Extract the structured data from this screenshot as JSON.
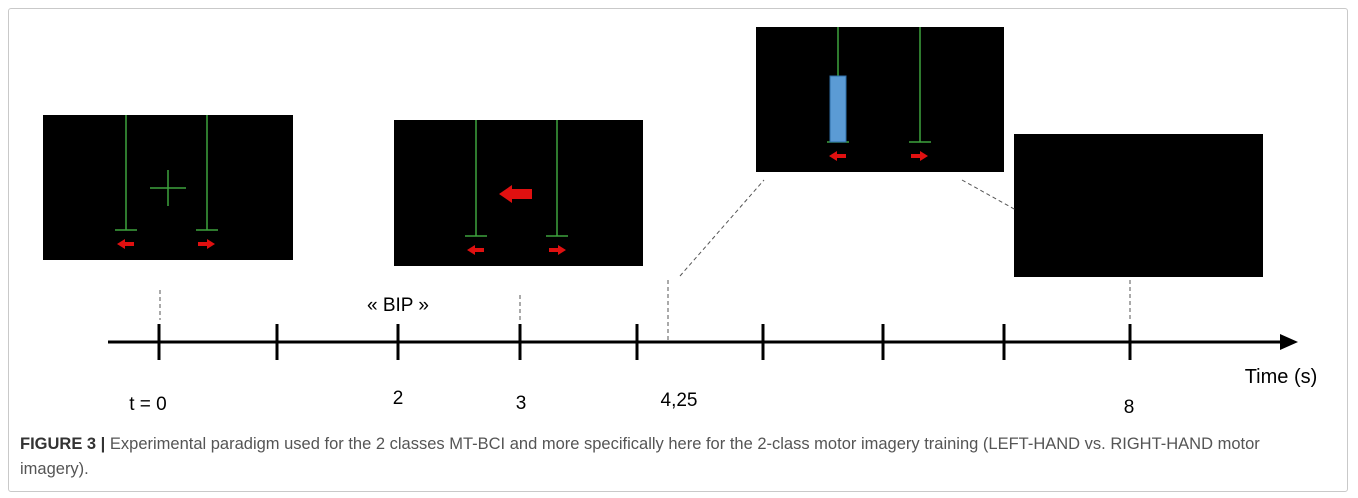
{
  "diagram": {
    "bip_label": "« BIP »",
    "axis_label": "Time (s)",
    "tick_labels": {
      "t0": "t = 0",
      "t2": "2",
      "t3": "3",
      "t425": "4,25",
      "t8": "8"
    },
    "colors": {
      "screen": "#000000",
      "gauge_line": "#3da33d",
      "arrow": "#e01010",
      "feedback_bar": "#5b9bd5",
      "axis": "#000000"
    }
  },
  "caption": {
    "label": "FIGURE 3 |",
    "text": " Experimental paradigm used for the 2 classes MT-BCI and more specifically here for the 2-class motor imagery training (LEFT-HAND vs. RIGHT-HAND motor imagery)."
  }
}
